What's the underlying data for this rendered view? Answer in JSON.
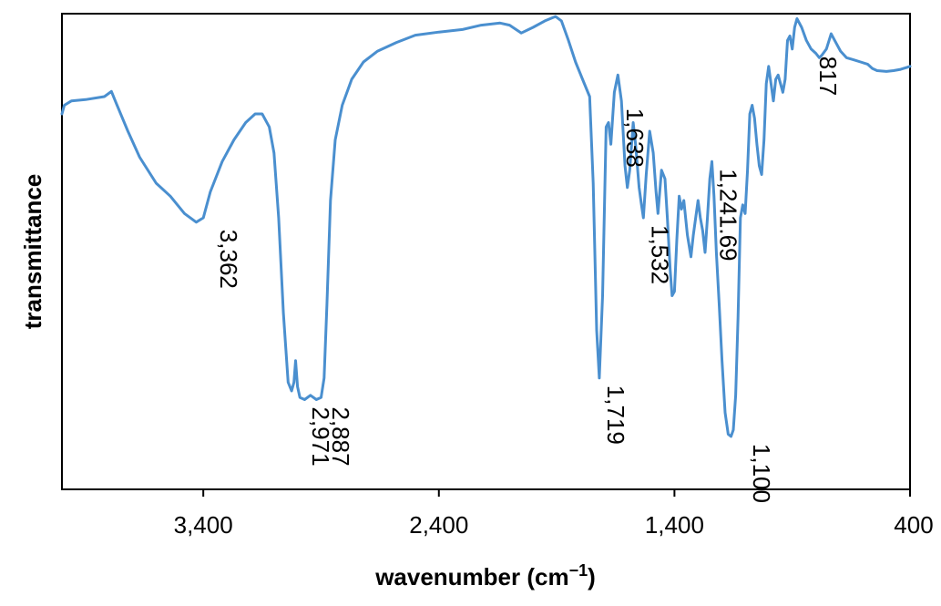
{
  "chart_data": {
    "type": "line",
    "xlabel": "wavenumber (cm",
    "xlabel_sup": "−1",
    "xlabel_end": ")",
    "ylabel": "transmittance",
    "xlim": [
      4000,
      400
    ],
    "x_reversed": true,
    "ylim": [
      0,
      100
    ],
    "x_ticks": [
      {
        "value": 3400,
        "label": "3,400"
      },
      {
        "value": 2400,
        "label": "2,400"
      },
      {
        "value": 1400,
        "label": "1,400"
      },
      {
        "value": 400,
        "label": "400"
      }
    ],
    "grid": false,
    "series": [
      {
        "color": "#4a8fcf",
        "points": [
          [
            4000,
            80
          ],
          [
            3990,
            82
          ],
          [
            3960,
            83
          ],
          [
            3900,
            83.3
          ],
          [
            3820,
            84
          ],
          [
            3790,
            85.2
          ],
          [
            3770,
            82.5
          ],
          [
            3720,
            76
          ],
          [
            3670,
            70
          ],
          [
            3600,
            64
          ],
          [
            3540,
            61
          ],
          [
            3480,
            57
          ],
          [
            3430,
            55
          ],
          [
            3400,
            56
          ],
          [
            3370,
            62
          ],
          [
            3320,
            69
          ],
          [
            3270,
            74
          ],
          [
            3220,
            78
          ],
          [
            3180,
            80
          ],
          [
            3150,
            80
          ],
          [
            3120,
            77
          ],
          [
            3100,
            71
          ],
          [
            3080,
            56
          ],
          [
            3060,
            34
          ],
          [
            3040,
            18
          ],
          [
            3025,
            16
          ],
          [
            3015,
            18
          ],
          [
            3008,
            23
          ],
          [
            3000,
            17
          ],
          [
            2990,
            14.5
          ],
          [
            2970,
            14
          ],
          [
            2945,
            15
          ],
          [
            2920,
            14
          ],
          [
            2900,
            14.5
          ],
          [
            2887,
            19
          ],
          [
            2875,
            36
          ],
          [
            2860,
            60
          ],
          [
            2840,
            74
          ],
          [
            2810,
            82
          ],
          [
            2770,
            88
          ],
          [
            2720,
            92
          ],
          [
            2660,
            94.5
          ],
          [
            2580,
            96.5
          ],
          [
            2500,
            98.2
          ],
          [
            2400,
            98.9
          ],
          [
            2300,
            99.5
          ],
          [
            2220,
            100.5
          ],
          [
            2140,
            101
          ],
          [
            2100,
            100.5
          ],
          [
            2050,
            98.7
          ],
          [
            2000,
            100
          ],
          [
            1950,
            101.5
          ],
          [
            1905,
            102.5
          ],
          [
            1880,
            101.5
          ],
          [
            1850,
            97
          ],
          [
            1820,
            92
          ],
          [
            1790,
            88
          ],
          [
            1760,
            84
          ],
          [
            1745,
            64
          ],
          [
            1730,
            30
          ],
          [
            1719,
            19
          ],
          [
            1705,
            38
          ],
          [
            1690,
            77
          ],
          [
            1680,
            78
          ],
          [
            1670,
            73
          ],
          [
            1655,
            85
          ],
          [
            1640,
            89
          ],
          [
            1625,
            83
          ],
          [
            1610,
            68
          ],
          [
            1600,
            63
          ],
          [
            1590,
            67
          ],
          [
            1575,
            78
          ],
          [
            1565,
            73
          ],
          [
            1550,
            63
          ],
          [
            1540,
            59
          ],
          [
            1532,
            56
          ],
          [
            1520,
            66
          ],
          [
            1505,
            76
          ],
          [
            1490,
            71
          ],
          [
            1478,
            62
          ],
          [
            1470,
            57
          ],
          [
            1455,
            67
          ],
          [
            1440,
            65
          ],
          [
            1430,
            56
          ],
          [
            1418,
            44
          ],
          [
            1410,
            38
          ],
          [
            1400,
            39
          ],
          [
            1390,
            51
          ],
          [
            1380,
            61
          ],
          [
            1370,
            58
          ],
          [
            1360,
            60
          ],
          [
            1345,
            52
          ],
          [
            1330,
            47
          ],
          [
            1320,
            52
          ],
          [
            1310,
            56
          ],
          [
            1300,
            60
          ],
          [
            1290,
            56
          ],
          [
            1280,
            53
          ],
          [
            1270,
            48
          ],
          [
            1265,
            52
          ],
          [
            1260,
            56
          ],
          [
            1250,
            65
          ],
          [
            1241,
            69
          ],
          [
            1232,
            61
          ],
          [
            1222,
            48
          ],
          [
            1210,
            36
          ],
          [
            1198,
            23
          ],
          [
            1185,
            11
          ],
          [
            1172,
            6
          ],
          [
            1160,
            5.5
          ],
          [
            1150,
            7
          ],
          [
            1140,
            15
          ],
          [
            1130,
            33
          ],
          [
            1120,
            56
          ],
          [
            1110,
            59
          ],
          [
            1100,
            57
          ],
          [
            1090,
            67
          ],
          [
            1080,
            80
          ],
          [
            1070,
            82
          ],
          [
            1060,
            79
          ],
          [
            1050,
            73
          ],
          [
            1040,
            68
          ],
          [
            1030,
            66
          ],
          [
            1020,
            74
          ],
          [
            1010,
            87
          ],
          [
            1000,
            91
          ],
          [
            990,
            87
          ],
          [
            980,
            83
          ],
          [
            970,
            88
          ],
          [
            960,
            89
          ],
          [
            950,
            87
          ],
          [
            940,
            85
          ],
          [
            930,
            88
          ],
          [
            920,
            97
          ],
          [
            910,
            98
          ],
          [
            900,
            95
          ],
          [
            890,
            100
          ],
          [
            880,
            102
          ],
          [
            860,
            100
          ],
          [
            840,
            97
          ],
          [
            820,
            95
          ],
          [
            800,
            94
          ],
          [
            785,
            93
          ],
          [
            775,
            93.5
          ],
          [
            755,
            95
          ],
          [
            735,
            98.5
          ],
          [
            715,
            96.5
          ],
          [
            695,
            94.5
          ],
          [
            670,
            93
          ],
          [
            640,
            92.5
          ],
          [
            610,
            92
          ],
          [
            580,
            91.5
          ],
          [
            560,
            90.5
          ],
          [
            540,
            90
          ],
          [
            500,
            89.8
          ],
          [
            470,
            90
          ],
          [
            440,
            90.3
          ],
          [
            410,
            90.8
          ],
          [
            400,
            91
          ]
        ]
      }
    ],
    "annotations": [
      {
        "label": "3,362",
        "x": 3362,
        "y": 55
      },
      {
        "label": "2,971",
        "x": 2971,
        "y": 14
      },
      {
        "label": "2,887",
        "x": 2887,
        "y": 14
      },
      {
        "label": "1,719",
        "x": 1719,
        "y": 19
      },
      {
        "label": "1,638",
        "x": 1638,
        "y": 83
      },
      {
        "label": "1,532",
        "x": 1532,
        "y": 56
      },
      {
        "label": "1,241.69",
        "x": 1241,
        "y": 69
      },
      {
        "label": "1,100",
        "x": 1100,
        "y": 5.5
      },
      {
        "label": "817",
        "x": 817,
        "y": 95
      }
    ]
  }
}
